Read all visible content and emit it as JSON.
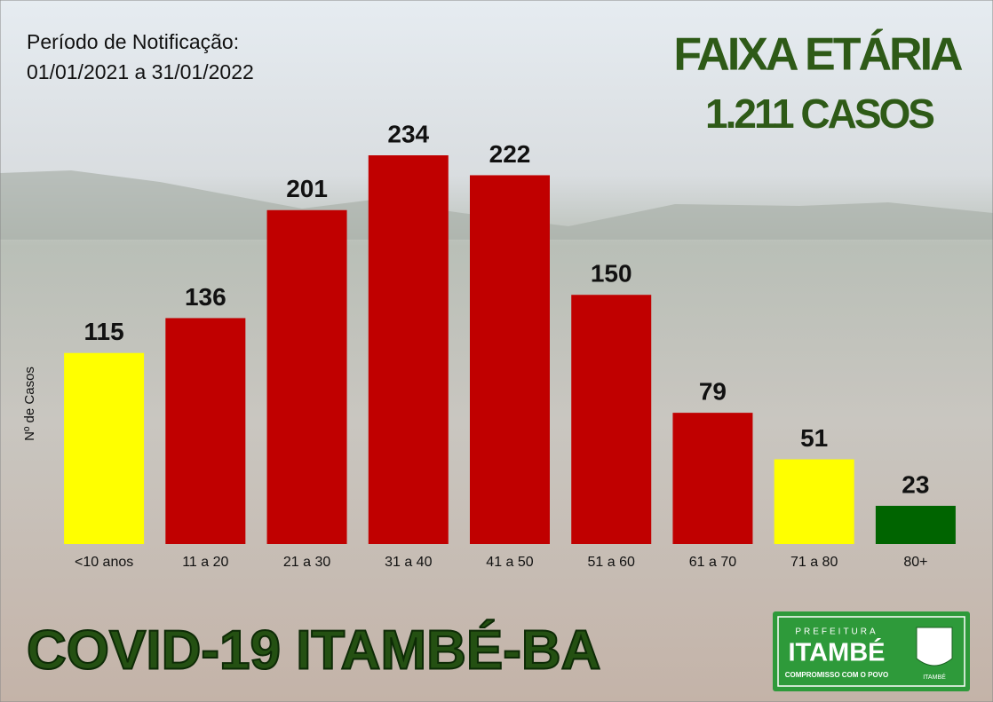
{
  "chart_data": {
    "type": "bar",
    "title": "FAIXA ETÁRIA",
    "subtitle": "1.211 CASOS",
    "period": [
      "Período de Notificação:",
      "01/01/2021 a 31/01/2022"
    ],
    "y_label": "Nº de Casos",
    "categories": [
      "<10 anos",
      "11 a 20",
      "21 a 30",
      "31 a 40",
      "41 a 50",
      "51 a 60",
      "61 a 70",
      "71 a 80",
      "80+"
    ],
    "values": [
      115,
      136,
      201,
      234,
      222,
      150,
      79,
      51,
      23
    ],
    "colors": [
      "#ffff00",
      "#c00000",
      "#c00000",
      "#c00000",
      "#c00000",
      "#c00000",
      "#c00000",
      "#ffff00",
      "#006400"
    ]
  },
  "footer": "COVID-19  ITAMBÉ-BA",
  "logo": {
    "top": "PREFEITURA",
    "name": "ITAMBÉ",
    "motto": "COMPROMISSO COM O POVO",
    "crest": "ITAMBÉ"
  }
}
